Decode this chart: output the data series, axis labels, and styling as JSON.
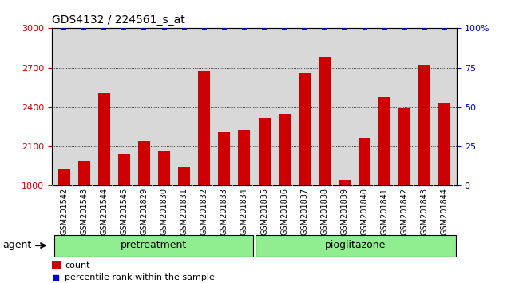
{
  "title": "GDS4132 / 224561_s_at",
  "categories": [
    "GSM201542",
    "GSM201543",
    "GSM201544",
    "GSM201545",
    "GSM201829",
    "GSM201830",
    "GSM201831",
    "GSM201832",
    "GSM201833",
    "GSM201834",
    "GSM201835",
    "GSM201836",
    "GSM201837",
    "GSM201838",
    "GSM201839",
    "GSM201840",
    "GSM201841",
    "GSM201842",
    "GSM201843",
    "GSM201844"
  ],
  "bar_values": [
    1930,
    1990,
    2510,
    2040,
    2140,
    2060,
    1940,
    2670,
    2210,
    2220,
    2320,
    2350,
    2660,
    2780,
    1840,
    2160,
    2480,
    2390,
    2720,
    2430
  ],
  "percentile_values": [
    100,
    100,
    100,
    100,
    100,
    100,
    100,
    100,
    100,
    100,
    100,
    100,
    100,
    100,
    100,
    100,
    100,
    100,
    100,
    100
  ],
  "bar_color": "#cc0000",
  "percentile_color": "#0000cc",
  "ylim_left": [
    1800,
    3000
  ],
  "ylim_right": [
    0,
    100
  ],
  "yticks_left": [
    1800,
    2100,
    2400,
    2700,
    3000
  ],
  "yticks_right": [
    0,
    25,
    50,
    75,
    100
  ],
  "ytick_labels_right": [
    "0",
    "25",
    "50",
    "75",
    "100%"
  ],
  "group1_indices": [
    0,
    9
  ],
  "group2_indices": [
    10,
    19
  ],
  "agent_label": "agent",
  "legend_count_label": "count",
  "legend_percentile_label": "percentile rank within the sample",
  "plot_bg_color": "#d8d8d8",
  "group_color": "#90ee90",
  "group_label_pretreatment": "pretreatment",
  "group_label_pioglitazone": "pioglitazone",
  "fig_bg": "#ffffff"
}
